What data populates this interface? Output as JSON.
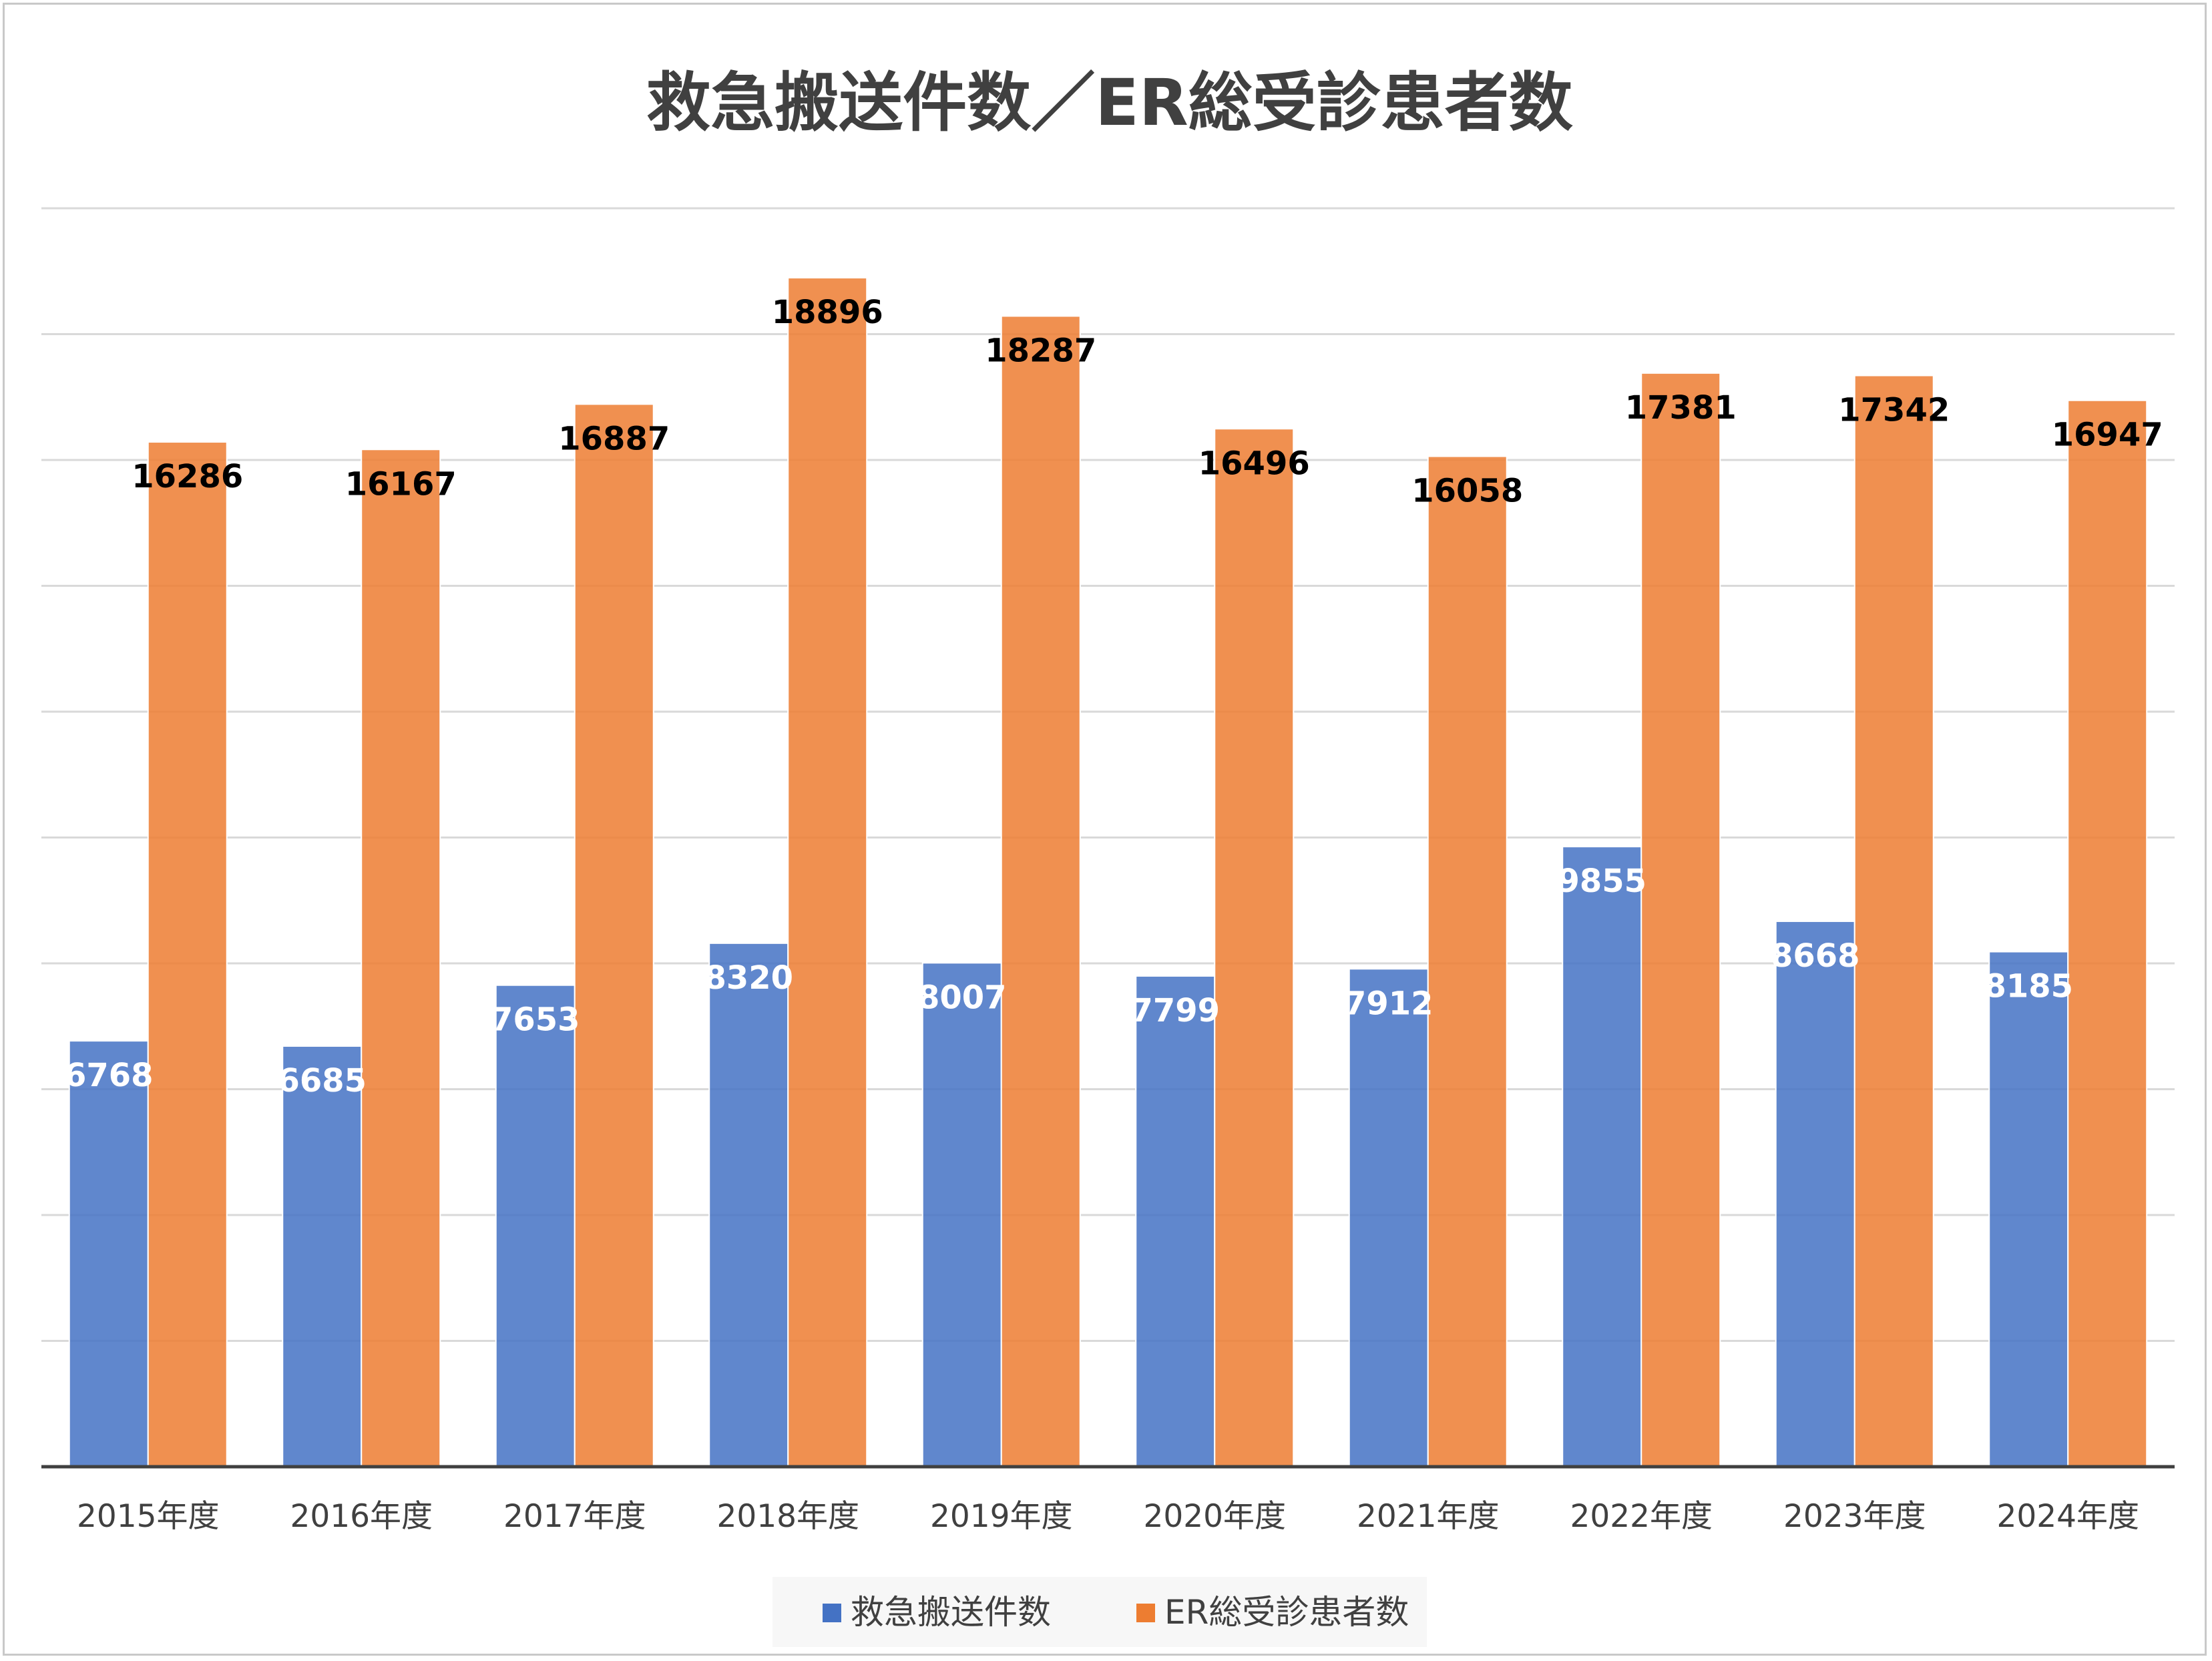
{
  "chart_data": {
    "type": "bar",
    "title": "救急搬送件数／ER総受診患者数",
    "categories": [
      "2015年度",
      "2016年度",
      "2017年度",
      "2018年度",
      "2019年度",
      "2020年度",
      "2021年度",
      "2022年度",
      "2023年度",
      "2024年度"
    ],
    "series": [
      {
        "name": "救急搬送件数",
        "color": "#4472c4",
        "values": [
          6768,
          6685,
          7653,
          8320,
          8007,
          7799,
          7912,
          9855,
          8668,
          8185
        ]
      },
      {
        "name": "ER総受診患者数",
        "color": "#ed7d31",
        "values": [
          16286,
          16167,
          16887,
          18896,
          18287,
          16496,
          16058,
          17381,
          17342,
          16947
        ]
      }
    ],
    "xlabel": "",
    "ylabel": "",
    "ylim": [
      0,
      20000
    ],
    "grid": true,
    "legend": "bottom",
    "data_labels": true
  }
}
